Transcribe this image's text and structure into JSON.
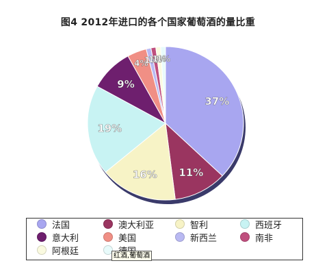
{
  "chart_data": {
    "type": "pie",
    "title": "图4 2012年进口的各个国家葡萄酒的量比重",
    "legend_position": "bottom",
    "slices": [
      {
        "name": "法国",
        "value": 37,
        "label": "37%",
        "color": "#a8a6f0"
      },
      {
        "name": "澳大利亚",
        "value": 11,
        "label": "11%",
        "color": "#9a3560"
      },
      {
        "name": "智利",
        "value": 16,
        "label": "16%",
        "color": "#f7f3c6"
      },
      {
        "name": "西班牙",
        "value": 19,
        "label": "19%",
        "color": "#c8f3f3"
      },
      {
        "name": "意大利",
        "value": 9,
        "label": "9%",
        "color": "#6e1f6e"
      },
      {
        "name": "美国",
        "value": 4,
        "label": "4%",
        "color": "#f08f85"
      },
      {
        "name": "新西兰",
        "value": 1,
        "label": "1%",
        "color": "#b9b9f2"
      },
      {
        "name": "南非",
        "value": 1,
        "label": "1%",
        "color": "#bf4f7e"
      },
      {
        "name": "阿根廷",
        "value": 1,
        "label": "1%",
        "color": "#fafae0"
      },
      {
        "name": "德国",
        "value": 1,
        "label": "1%",
        "color": "#e8fbfb"
      }
    ]
  },
  "tooltip": {
    "text": "红酒,葡萄酒"
  }
}
